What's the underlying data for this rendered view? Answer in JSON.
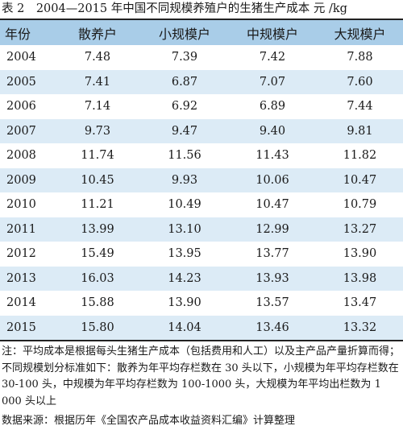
{
  "title": "表 2　2004—2015 年中国不同规模养殖户的生猪生产成本  元 /kg",
  "table": {
    "headers": [
      "年份",
      "散养户",
      "小规模户",
      "中规模户",
      "大规模户"
    ],
    "rows": [
      [
        "2004",
        "7.48",
        "7.39",
        "7.42",
        "7.88"
      ],
      [
        "2005",
        "7.41",
        "6.87",
        "7.07",
        "7.60"
      ],
      [
        "2006",
        "7.14",
        "6.92",
        "6.89",
        "7.44"
      ],
      [
        "2007",
        "9.73",
        "9.47",
        "9.40",
        "9.81"
      ],
      [
        "2008",
        "11.74",
        "11.56",
        "11.43",
        "11.82"
      ],
      [
        "2009",
        "10.45",
        "9.93",
        "10.06",
        "10.47"
      ],
      [
        "2010",
        "11.21",
        "10.49",
        "10.47",
        "10.79"
      ],
      [
        "2011",
        "13.99",
        "13.10",
        "12.99",
        "13.27"
      ],
      [
        "2012",
        "15.49",
        "13.95",
        "13.77",
        "13.90"
      ],
      [
        "2013",
        "16.03",
        "14.23",
        "13.93",
        "13.98"
      ],
      [
        "2014",
        "15.88",
        "13.90",
        "13.57",
        "13.47"
      ],
      [
        "2015",
        "15.80",
        "14.04",
        "13.46",
        "13.32"
      ]
    ]
  },
  "note": "注：平均成本是根据每头生猪生产成本（包括费用和人工）以及主产品产量折算而得；不同规模划分标准如下：散养为年平均存栏数在 30 头以下，小规模为年平均存栏数在 30-100 头，中规模为年平均存栏数为 100-1000 头，大规模为年平均出栏数为 1 000 头以上",
  "source": "数据来源：根据历年《全国农产品成本收益资料汇编》计算整理",
  "colors": {
    "header_bg": "#a9cde8",
    "stripe_bg": "#dcebf6"
  }
}
